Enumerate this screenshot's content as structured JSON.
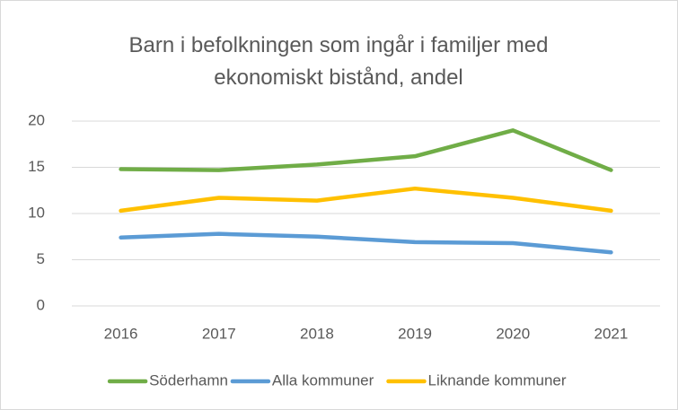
{
  "chart_data": {
    "type": "line",
    "title": "Barn i befolkningen som ingår i familjer med ekonomiskt bistånd, andel",
    "categories": [
      "2016",
      "2017",
      "2018",
      "2019",
      "2020",
      "2021"
    ],
    "series": [
      {
        "name": "Söderhamn",
        "color": "#70ad47",
        "values": [
          14.8,
          14.7,
          15.3,
          16.2,
          19.0,
          14.7
        ]
      },
      {
        "name": "Alla kommuner",
        "color": "#5b9bd5",
        "values": [
          7.4,
          7.8,
          7.5,
          6.9,
          6.8,
          5.8
        ]
      },
      {
        "name": "Liknande kommuner",
        "color": "#ffc000",
        "values": [
          10.3,
          11.7,
          11.4,
          12.7,
          11.7,
          10.3
        ]
      }
    ],
    "ylim": [
      0,
      20
    ],
    "yticks": [
      0,
      5,
      10,
      15,
      20
    ],
    "grid": true,
    "legend": "bottom"
  }
}
